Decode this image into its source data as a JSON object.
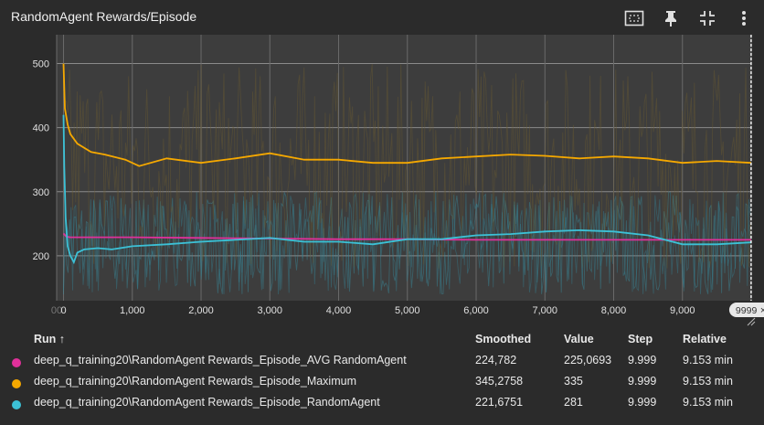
{
  "header": {
    "title": "RandomAgent Rewards/Episode"
  },
  "toolbar": {
    "buttons": [
      {
        "icon": "fit-domain-icon"
      },
      {
        "icon": "pin-icon"
      },
      {
        "icon": "collapse-icon"
      },
      {
        "icon": "more-vert-icon"
      }
    ]
  },
  "chart_data": {
    "type": "line",
    "xlim": [
      -100,
      10000
    ],
    "ylim": [
      130,
      545
    ],
    "x_ticks": [
      "00",
      "0",
      "1,000",
      "2,000",
      "3,000",
      "4,000",
      "5,000",
      "6,000",
      "7,000",
      "8,000",
      "9,000",
      "1"
    ],
    "x_tick_values": [
      -100,
      0,
      1000,
      2000,
      3000,
      4000,
      5000,
      6000,
      7000,
      8000,
      9000,
      10000
    ],
    "y_ticks": [
      200,
      300,
      400,
      500
    ],
    "cursor_step_label": "9999",
    "cursor_step": 9999,
    "series": [
      {
        "name": "deep_q_training20\\RandomAgent Rewards_Episode_AVG RandomAgent",
        "color": "#e0309a",
        "x": [
          0,
          40,
          100,
          500,
          1000,
          2000,
          3000,
          4000,
          5000,
          6000,
          7000,
          8000,
          9000,
          9999
        ],
        "y": [
          235,
          230,
          229,
          229,
          229,
          228,
          227,
          226,
          226,
          225,
          225,
          225,
          225,
          225
        ]
      },
      {
        "name": "deep_q_training20\\RandomAgent Rewards_Episode_Maximum",
        "color": "#f5a800",
        "x": [
          0,
          20,
          60,
          100,
          200,
          400,
          600,
          900,
          1100,
          1500,
          2000,
          2500,
          3000,
          3500,
          4000,
          4500,
          5000,
          5500,
          6000,
          6500,
          7000,
          7500,
          8000,
          8500,
          9000,
          9500,
          9999
        ],
        "y": [
          500,
          430,
          405,
          390,
          375,
          362,
          358,
          350,
          340,
          352,
          345,
          352,
          360,
          350,
          350,
          345,
          345,
          352,
          355,
          358,
          356,
          352,
          355,
          352,
          345,
          348,
          345
        ]
      },
      {
        "name": "deep_q_training20\\RandomAgent Rewards_Episode_RandomAgent",
        "color": "#3cc1d6",
        "x": [
          0,
          10,
          30,
          60,
          100,
          150,
          200,
          300,
          500,
          700,
          1000,
          1500,
          2000,
          2500,
          3000,
          3500,
          4000,
          4500,
          5000,
          5500,
          6000,
          6500,
          7000,
          7500,
          8000,
          8500,
          9000,
          9500,
          9999
        ],
        "y": [
          420,
          340,
          260,
          215,
          200,
          190,
          205,
          210,
          212,
          210,
          215,
          218,
          222,
          225,
          228,
          222,
          222,
          218,
          226,
          226,
          232,
          234,
          238,
          240,
          238,
          232,
          218,
          218,
          221
        ]
      }
    ]
  },
  "table": {
    "columns": {
      "run": "Run ↑",
      "smoothed": "Smoothed",
      "value": "Value",
      "step": "Step",
      "relative": "Relative"
    },
    "rows": [
      {
        "color": "#e0309a",
        "run": "deep_q_training20\\RandomAgent Rewards_Episode_AVG RandomAgent",
        "smoothed": "224,782",
        "value": "225,0693",
        "step": "9.999",
        "relative": "9.153 min"
      },
      {
        "color": "#f5a800",
        "run": "deep_q_training20\\RandomAgent Rewards_Episode_Maximum",
        "smoothed": "345,2758",
        "value": "335",
        "step": "9.999",
        "relative": "9.153 min"
      },
      {
        "color": "#3cc1d6",
        "run": "deep_q_training20\\RandomAgent Rewards_Episode_RandomAgent",
        "smoothed": "221,6751",
        "value": "281",
        "step": "9.999",
        "relative": "9.153 min"
      }
    ]
  }
}
